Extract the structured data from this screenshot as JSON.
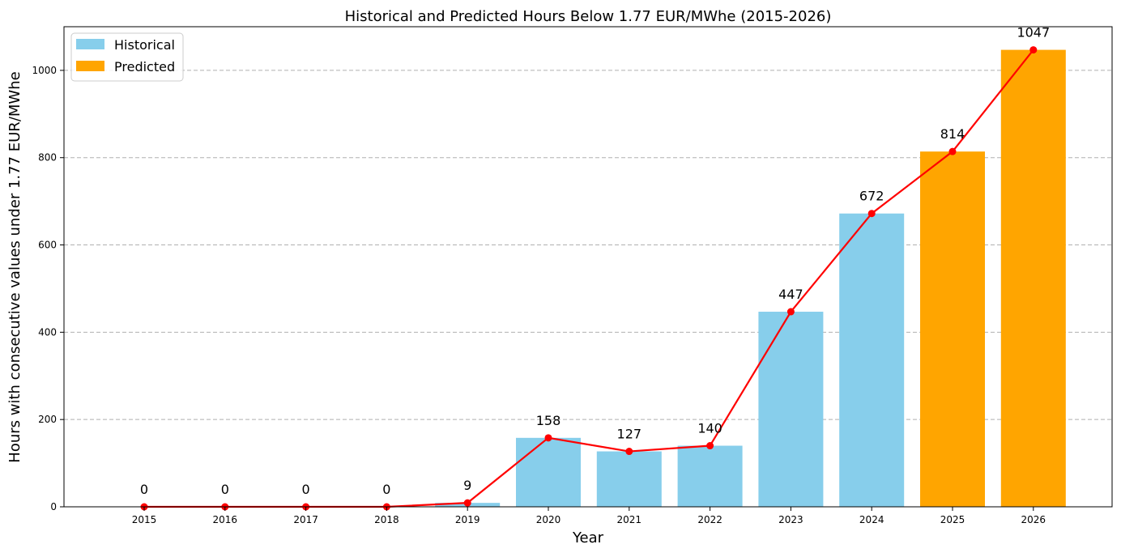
{
  "chart_data": {
    "type": "bar",
    "title": "Historical and Predicted Hours Below 1.77 EUR/MWhe (2015-2026)",
    "xlabel": "Year",
    "ylabel": "Hours with consecutive values under 1.77 EUR/MWhe",
    "categories": [
      "2015",
      "2016",
      "2017",
      "2018",
      "2019",
      "2020",
      "2021",
      "2022",
      "2023",
      "2024",
      "2025",
      "2026"
    ],
    "values": [
      0,
      0,
      0,
      0,
      9,
      158,
      127,
      140,
      447,
      672,
      814,
      1047
    ],
    "bar_groups": [
      "Historical",
      "Historical",
      "Historical",
      "Historical",
      "Historical",
      "Historical",
      "Historical",
      "Historical",
      "Historical",
      "Historical",
      "Predicted",
      "Predicted"
    ],
    "data_labels": [
      "0",
      "0",
      "0",
      "0",
      "9",
      "158",
      "127",
      "140",
      "447",
      "672",
      "814",
      "1047"
    ],
    "overlay_line": {
      "color": "#ff0000",
      "marker": "circle"
    },
    "legend": {
      "placement": "top-left",
      "entries": [
        {
          "label": "Historical",
          "color": "#87ceeb"
        },
        {
          "label": "Predicted",
          "color": "#ffa500"
        }
      ]
    },
    "ylim": [
      0,
      1100
    ],
    "yticks": [
      "0",
      "200",
      "400",
      "600",
      "800",
      "1000"
    ],
    "grid": "y-dashed"
  }
}
